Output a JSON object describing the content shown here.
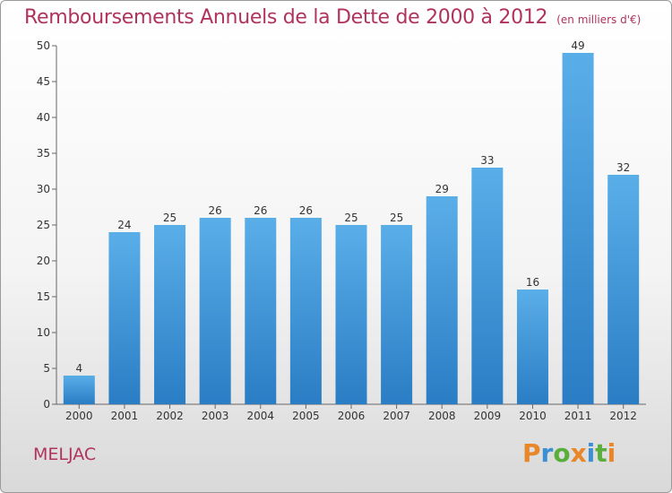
{
  "title": "Remboursements Annuels de la Dette de 2000 à 2012",
  "subtitle": "(en milliers d'€)",
  "commune": "MELJAC",
  "logo": {
    "text": "Proxiti",
    "letters": [
      {
        "ch": "P",
        "color": "#e8862a"
      },
      {
        "ch": "r",
        "color": "#3d8fd4"
      },
      {
        "ch": "o",
        "color": "#5aaf3c"
      },
      {
        "ch": "x",
        "color": "#e8862a"
      },
      {
        "ch": "i",
        "color": "#3d8fd4"
      },
      {
        "ch": "t",
        "color": "#5aaf3c"
      },
      {
        "ch": "i",
        "color": "#e8862a"
      }
    ]
  },
  "colors": {
    "title": "#b0335e",
    "bar_top": "#5aaee8",
    "bar_bottom": "#2a7dc4"
  },
  "chart_data": {
    "type": "bar",
    "categories": [
      "2000",
      "2001",
      "2002",
      "2003",
      "2004",
      "2005",
      "2006",
      "2007",
      "2008",
      "2009",
      "2010",
      "2011",
      "2012"
    ],
    "values": [
      4,
      24,
      25,
      26,
      26,
      26,
      25,
      25,
      29,
      33,
      16,
      49,
      32
    ],
    "ylim": [
      0,
      50
    ],
    "yticks": [
      0,
      5,
      10,
      15,
      20,
      25,
      30,
      35,
      40,
      45,
      50
    ],
    "grid": false,
    "legend": "none"
  }
}
